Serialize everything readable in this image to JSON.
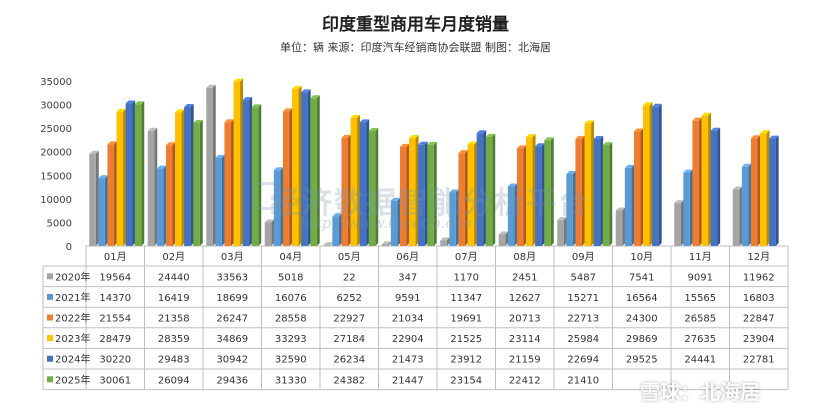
{
  "header": {
    "title": "印度重型商用车月度销量",
    "subtitle": "单位：辆  来源：印度汽车经销商协会联盟  制图：北海居"
  },
  "watermark": {
    "main": "经济数据智能分析平台",
    "url": "http://www.topedb.com"
  },
  "brand": "雪球：北海居",
  "chart_data": {
    "type": "bar",
    "title": "印度重型商用车月度销量",
    "subtitle": "单位：辆  来源：印度汽车经销商协会联盟  制图：北海居",
    "xlabel": "",
    "ylabel": "",
    "ylim": [
      0,
      35000
    ],
    "yticks": [
      "0",
      "5000",
      "10000",
      "15000",
      "20000",
      "25000",
      "30000",
      "35000"
    ],
    "grid": false,
    "legend": "bottom-table",
    "categories": [
      "01月",
      "02月",
      "03月",
      "04月",
      "05月",
      "06月",
      "07月",
      "08月",
      "09月",
      "10月",
      "11月",
      "12月"
    ],
    "series": [
      {
        "name": "2020年",
        "color": "#a5a5a5",
        "values": [
          19564,
          24440,
          33563,
          5018,
          22,
          347,
          1170,
          2451,
          5487,
          7541,
          9091,
          11962
        ]
      },
      {
        "name": "2021年",
        "color": "#5b9bd5",
        "values": [
          14370,
          16419,
          18699,
          16076,
          6252,
          9591,
          11347,
          12627,
          15271,
          16564,
          15565,
          16803
        ]
      },
      {
        "name": "2022年",
        "color": "#ed7d31",
        "values": [
          21554,
          21358,
          26247,
          28558,
          22927,
          21034,
          19691,
          20713,
          22713,
          24300,
          26585,
          22847
        ]
      },
      {
        "name": "2023年",
        "color": "#ffc000",
        "values": [
          28479,
          28359,
          34869,
          33293,
          27184,
          22904,
          21525,
          23114,
          25984,
          29869,
          27635,
          23904
        ]
      },
      {
        "name": "2024年",
        "color": "#4472c4",
        "values": [
          30220,
          29483,
          30942,
          32590,
          26234,
          21473,
          23912,
          21159,
          22694,
          29525,
          24441,
          22781
        ]
      },
      {
        "name": "2025年",
        "color": "#70ad47",
        "values": [
          30061,
          26094,
          29436,
          31330,
          24382,
          21447,
          23154,
          22412,
          21410,
          null,
          null,
          null
        ]
      }
    ]
  }
}
